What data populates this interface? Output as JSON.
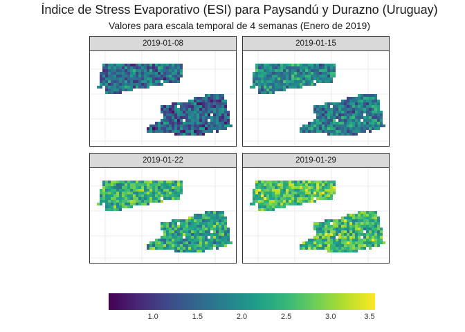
{
  "title": "Índice de Stress Evaporativo (ESI) para Paysandú y Durazno (Uruguay)",
  "subtitle": "Valores para escala temporal de 4 semanas (Enero de 2019)",
  "facets": [
    {
      "label": "2019-01-08",
      "mean_level": 1.6
    },
    {
      "label": "2019-01-15",
      "mean_level": 1.9
    },
    {
      "label": "2019-01-22",
      "mean_level": 2.4
    },
    {
      "label": "2019-01-29",
      "mean_level": 2.7
    }
  ],
  "legend": {
    "min": 0.5,
    "max": 3.5,
    "ticks": [
      "1.0",
      "1.5",
      "2.0",
      "2.5",
      "3.0",
      "3.5"
    ],
    "palette": [
      "#440154",
      "#482878",
      "#3e4a89",
      "#31688e",
      "#26828e",
      "#1f9e89",
      "#35b779",
      "#6ece58",
      "#b5de2b",
      "#fde725"
    ]
  }
}
